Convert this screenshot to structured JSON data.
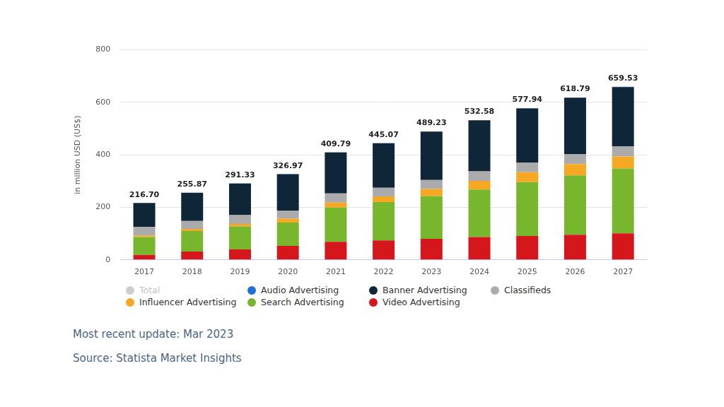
{
  "chart_data": {
    "type": "bar",
    "stacked": true,
    "grid": true,
    "legend": "bottom",
    "y_label": "in million USD (US$)",
    "categories": [
      "2017",
      "2018",
      "2019",
      "2020",
      "2021",
      "2022",
      "2023",
      "2024",
      "2025",
      "2026",
      "2027"
    ],
    "ylim": [
      0,
      800
    ],
    "yticks": [
      0,
      200,
      400,
      600,
      800
    ],
    "totals": {
      "name": "Total",
      "color": "#cccccc",
      "values": [
        216.7,
        255.87,
        291.33,
        326.97,
        409.79,
        445.07,
        489.23,
        532.58,
        577.94,
        618.79,
        659.53
      ],
      "value_labels": [
        "216.70",
        "255.87",
        "291.33",
        "326.97",
        "409.79",
        "445.07",
        "489.23",
        "532.58",
        "577.94",
        "618.79",
        "659.53"
      ]
    },
    "series": [
      {
        "name": "Audio Advertising",
        "color": "#1f6fd6",
        "values": [
          0.2,
          0.3,
          0.4,
          0.5,
          0.6,
          0.7,
          0.8,
          0.9,
          1.0,
          1.1,
          1.2
        ]
      },
      {
        "name": "Banner Advertising",
        "color": "#0f2538",
        "values": [
          91.5,
          107.57,
          118.93,
          138.47,
          156.19,
          169.37,
          184.43,
          194.68,
          205.94,
          214.69,
          226.33
        ]
      },
      {
        "name": "Classifieds",
        "color": "#ababab",
        "values": [
          33,
          30,
          35,
          31,
          35,
          33,
          34,
          36,
          37,
          38,
          38
        ]
      },
      {
        "name": "Influencer Advertising",
        "color": "#f7a823",
        "values": [
          5,
          8,
          10,
          15,
          19,
          22,
          27,
          33,
          38,
          43,
          46
        ]
      },
      {
        "name": "Search Advertising",
        "color": "#78b62d",
        "values": [
          68,
          78,
          87,
          89,
          130,
          146,
          163,
          181,
          205,
          226,
          247
        ]
      },
      {
        "name": "Video Advertising",
        "color": "#d5171c",
        "values": [
          19,
          32,
          40,
          53,
          69,
          74,
          80,
          87,
          91,
          96,
          101
        ]
      }
    ],
    "annotations": [
      "Most recent update: Mar 2023",
      "Source: Statista Market Insights"
    ]
  }
}
